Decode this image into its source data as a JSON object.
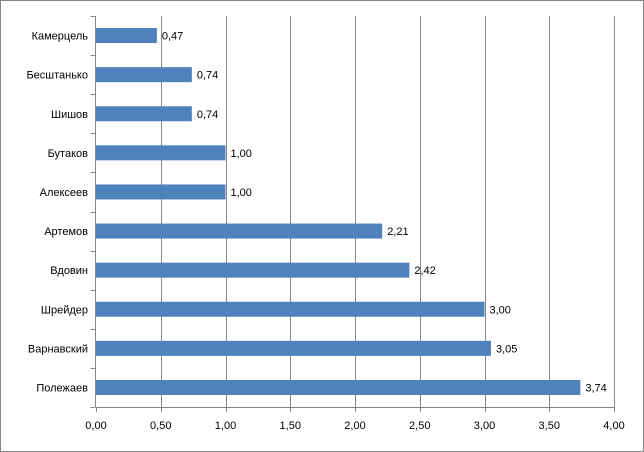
{
  "chart_data": {
    "type": "bar",
    "orientation": "horizontal",
    "title": "",
    "xlabel": "",
    "ylabel": "",
    "categories": [
      "Камерцель",
      "Бесштанько",
      "Шишов",
      "Бутаков",
      "Алексеев",
      "Артемов",
      "Вдовин",
      "Шрейдер",
      "Варнавский",
      "Полежаев"
    ],
    "values": [
      0.47,
      0.74,
      0.74,
      1.0,
      1.0,
      2.21,
      2.42,
      3.0,
      3.05,
      3.74
    ],
    "data_labels": [
      "0,47",
      "0,74",
      "0,74",
      "1,00",
      "1,00",
      "2,21",
      "2,42",
      "3,00",
      "3,05",
      "3,74"
    ],
    "xlim": [
      0,
      4
    ],
    "x_ticks": [
      "0,00",
      "0,50",
      "1,00",
      "1,50",
      "2,00",
      "2,50",
      "3,00",
      "3,50",
      "4,00"
    ],
    "gridlines": "vertical",
    "legend": "none",
    "colors": {
      "bar": "#4F81BD",
      "grid": "#868686"
    }
  }
}
